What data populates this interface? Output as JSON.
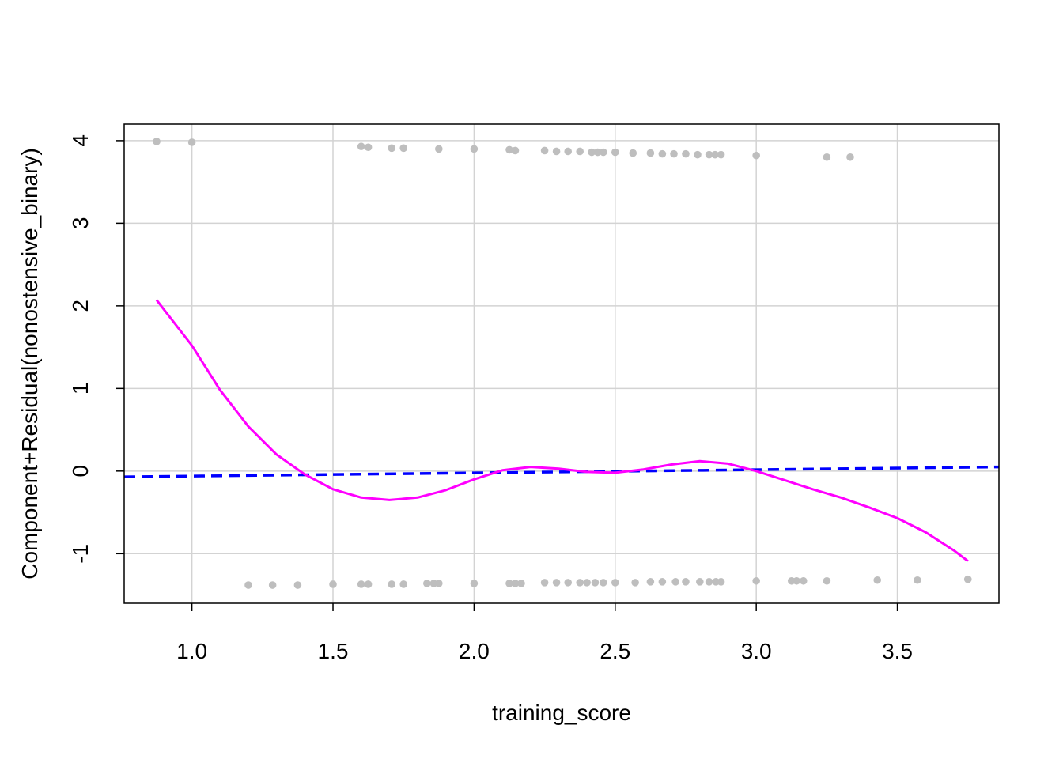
{
  "chart_data": {
    "type": "scatter",
    "title": "",
    "xlabel": "training_score",
    "ylabel": "Component+Residual(nonostensive_binary)",
    "xlim": [
      0.76,
      3.86
    ],
    "ylim": [
      -1.6,
      4.2
    ],
    "x_ticks": [
      1.0,
      1.5,
      2.0,
      2.5,
      3.0,
      3.5
    ],
    "x_tick_labels": [
      "1.0",
      "1.5",
      "2.0",
      "2.5",
      "3.0",
      "3.5"
    ],
    "y_ticks": [
      -1,
      0,
      1,
      2,
      3,
      4
    ],
    "y_tick_labels": [
      "-1",
      "0",
      "1",
      "2",
      "3",
      "4"
    ],
    "grid": true,
    "colors": {
      "points": "#bebebe",
      "linear_fit": "#0000ff",
      "smooth_fit": "#ff00ff",
      "grid": "#d3d3d3",
      "frame": "#000000"
    },
    "series": [
      {
        "type": "scatter",
        "points": [
          [
            0.875,
            3.99
          ],
          [
            1.0,
            3.98
          ],
          [
            1.6,
            3.93
          ],
          [
            1.625,
            3.92
          ],
          [
            1.708,
            3.91
          ],
          [
            1.75,
            3.91
          ],
          [
            1.875,
            3.9
          ],
          [
            2.0,
            3.9
          ],
          [
            2.125,
            3.89
          ],
          [
            2.146,
            3.88
          ],
          [
            2.25,
            3.88
          ],
          [
            2.292,
            3.87
          ],
          [
            2.333,
            3.87
          ],
          [
            2.375,
            3.87
          ],
          [
            2.417,
            3.86
          ],
          [
            2.438,
            3.86
          ],
          [
            2.458,
            3.86
          ],
          [
            2.5,
            3.86
          ],
          [
            2.563,
            3.85
          ],
          [
            2.625,
            3.85
          ],
          [
            2.667,
            3.84
          ],
          [
            2.708,
            3.84
          ],
          [
            2.75,
            3.84
          ],
          [
            2.792,
            3.83
          ],
          [
            2.833,
            3.83
          ],
          [
            2.854,
            3.83
          ],
          [
            2.875,
            3.83
          ],
          [
            3.0,
            3.82
          ],
          [
            3.25,
            3.8
          ],
          [
            3.333,
            3.8
          ],
          [
            1.2,
            -1.38
          ],
          [
            1.286,
            -1.38
          ],
          [
            1.375,
            -1.38
          ],
          [
            1.5,
            -1.37
          ],
          [
            1.6,
            -1.37
          ],
          [
            1.625,
            -1.37
          ],
          [
            1.708,
            -1.37
          ],
          [
            1.75,
            -1.37
          ],
          [
            1.833,
            -1.36
          ],
          [
            1.857,
            -1.36
          ],
          [
            1.875,
            -1.36
          ],
          [
            2.0,
            -1.36
          ],
          [
            2.125,
            -1.36
          ],
          [
            2.146,
            -1.36
          ],
          [
            2.167,
            -1.36
          ],
          [
            2.25,
            -1.35
          ],
          [
            2.292,
            -1.35
          ],
          [
            2.333,
            -1.35
          ],
          [
            2.375,
            -1.35
          ],
          [
            2.4,
            -1.35
          ],
          [
            2.429,
            -1.35
          ],
          [
            2.458,
            -1.35
          ],
          [
            2.5,
            -1.35
          ],
          [
            2.571,
            -1.35
          ],
          [
            2.625,
            -1.34
          ],
          [
            2.667,
            -1.34
          ],
          [
            2.714,
            -1.34
          ],
          [
            2.75,
            -1.34
          ],
          [
            2.8,
            -1.34
          ],
          [
            2.833,
            -1.34
          ],
          [
            2.857,
            -1.34
          ],
          [
            2.875,
            -1.34
          ],
          [
            3.0,
            -1.33
          ],
          [
            3.125,
            -1.33
          ],
          [
            3.143,
            -1.33
          ],
          [
            3.167,
            -1.33
          ],
          [
            3.25,
            -1.33
          ],
          [
            3.429,
            -1.32
          ],
          [
            3.571,
            -1.32
          ],
          [
            3.75,
            -1.31
          ]
        ]
      },
      {
        "type": "line",
        "style": "dashed",
        "points": [
          [
            0.76,
            -0.07
          ],
          [
            3.86,
            0.05
          ]
        ]
      },
      {
        "type": "line",
        "style": "solid",
        "points": [
          [
            0.875,
            2.07
          ],
          [
            1.0,
            1.52
          ],
          [
            1.1,
            0.98
          ],
          [
            1.2,
            0.54
          ],
          [
            1.3,
            0.2
          ],
          [
            1.4,
            -0.04
          ],
          [
            1.5,
            -0.22
          ],
          [
            1.6,
            -0.32
          ],
          [
            1.7,
            -0.35
          ],
          [
            1.8,
            -0.32
          ],
          [
            1.9,
            -0.23
          ],
          [
            2.0,
            -0.1
          ],
          [
            2.1,
            0.01
          ],
          [
            2.2,
            0.05
          ],
          [
            2.3,
            0.03
          ],
          [
            2.4,
            -0.01
          ],
          [
            2.5,
            -0.02
          ],
          [
            2.6,
            0.02
          ],
          [
            2.7,
            0.08
          ],
          [
            2.8,
            0.12
          ],
          [
            2.9,
            0.09
          ],
          [
            3.0,
            0.0
          ],
          [
            3.1,
            -0.11
          ],
          [
            3.2,
            -0.22
          ],
          [
            3.3,
            -0.32
          ],
          [
            3.4,
            -0.44
          ],
          [
            3.5,
            -0.57
          ],
          [
            3.6,
            -0.74
          ],
          [
            3.7,
            -0.96
          ],
          [
            3.75,
            -1.09
          ]
        ]
      }
    ]
  }
}
